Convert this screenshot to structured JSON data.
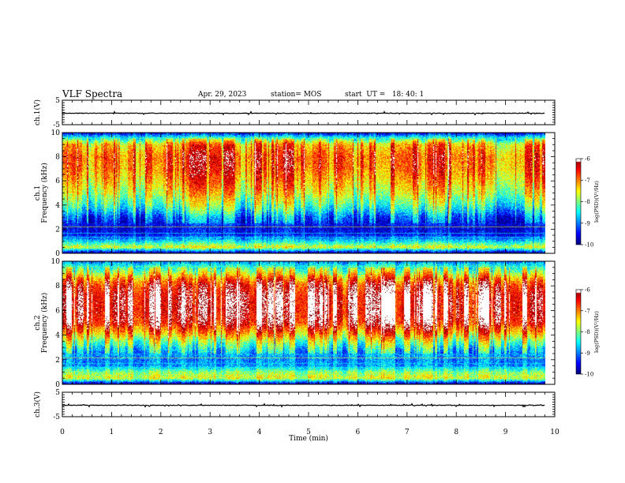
{
  "header": {
    "title": "VLF Spectra",
    "date": "Apr. 29, 2023",
    "station": "station= MOS",
    "start": "start  UT =   18: 40: 1"
  },
  "chart_data": [
    {
      "type": "line",
      "name": "ch1-waveform",
      "ylabel": "ch.1(V)",
      "ylim": [
        -5,
        5
      ],
      "yticks": [
        "-5",
        "5"
      ],
      "xlim": [
        0,
        10
      ],
      "x": [
        0,
        9.8
      ],
      "y": [
        0,
        0
      ]
    },
    {
      "type": "heatmap",
      "name": "ch1-spectrogram",
      "ylabel": "ch.1\nFrequency (kHz)",
      "ylabel_lines": [
        "ch.1",
        "Frequency (kHz)"
      ],
      "ylim": [
        0,
        10
      ],
      "yticks": [
        "0",
        "2",
        "4",
        "6",
        "8",
        "10"
      ],
      "xlim": [
        0,
        10
      ],
      "data_x_max": 9.8,
      "colorbar": {
        "label": "log(PSD)(V²/Hz)",
        "min": -10,
        "max": -6,
        "ticks": [
          "-6",
          "-7",
          "-8",
          "-9",
          "-10"
        ]
      },
      "profile_freq_khz": [
        0,
        0.5,
        1,
        1.5,
        2,
        2.5,
        3,
        3.5,
        4,
        5,
        6,
        7,
        8,
        9,
        9.5,
        10
      ],
      "profile_logpsd": [
        -10,
        -7.6,
        -8.6,
        -9.4,
        -9.6,
        -9.4,
        -9.1,
        -8.6,
        -8.2,
        -7.6,
        -7.2,
        -6.9,
        -6.8,
        -7.2,
        -8.2,
        -9.6
      ]
    },
    {
      "type": "heatmap",
      "name": "ch2-spectrogram",
      "ylabel": "ch.2\nFrequency (kHz)",
      "ylabel_lines": [
        "ch.2",
        "Frequency (kHz)"
      ],
      "ylim": [
        0,
        10
      ],
      "yticks": [
        "0",
        "2",
        "4",
        "6",
        "8",
        "10"
      ],
      "xlim": [
        0,
        10
      ],
      "data_x_max": 9.8,
      "colorbar": {
        "label": "log(PSD)(V²/Hz)",
        "min": -10,
        "max": -6,
        "ticks": [
          "-6",
          "-7",
          "-8",
          "-9",
          "-10"
        ]
      },
      "profile_freq_khz": [
        0,
        0.5,
        1,
        1.5,
        2,
        2.5,
        3,
        3.5,
        4,
        4.5,
        5,
        6,
        7,
        8,
        8.5,
        9,
        9.5,
        10
      ],
      "profile_logpsd": [
        -10,
        -7.6,
        -8.0,
        -8.9,
        -9.0,
        -8.8,
        -8.4,
        -7.9,
        -7.3,
        -6.8,
        -6.3,
        -6.1,
        -6.1,
        -6.4,
        -6.9,
        -7.6,
        -8.2,
        -9.0
      ]
    },
    {
      "type": "line",
      "name": "ch3-waveform",
      "ylabel": "ch.3(V)",
      "ylim": [
        -5,
        5
      ],
      "yticks": [
        "-5",
        "5"
      ],
      "xlim": [
        0,
        10
      ],
      "x": [
        0,
        9.8
      ],
      "y": [
        0,
        0
      ]
    }
  ],
  "xaxis": {
    "label": "Time (min)",
    "range": [
      0,
      10
    ],
    "ticks": [
      "0",
      "1",
      "2",
      "3",
      "4",
      "5",
      "6",
      "7",
      "8",
      "9",
      "10"
    ]
  }
}
